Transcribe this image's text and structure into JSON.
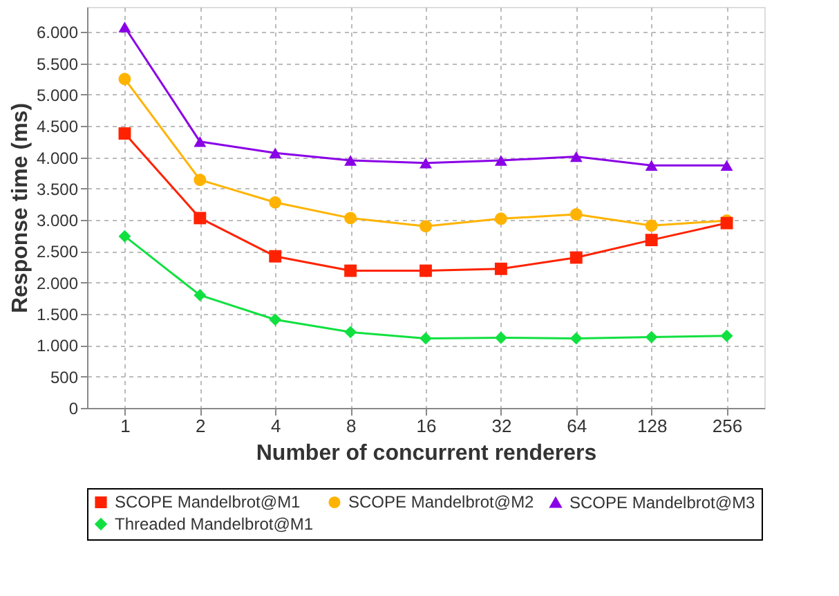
{
  "chart_data": {
    "type": "line",
    "xlabel": "Number of concurrent renderers",
    "ylabel": "Response time (ms)",
    "categories": [
      "1",
      "2",
      "4",
      "8",
      "16",
      "32",
      "64",
      "128",
      "256"
    ],
    "series": [
      {
        "name": "SCOPE Mandelbrot@M1",
        "color": "#ff2200",
        "marker": "square",
        "values": [
          4380,
          3030,
          2420,
          2190,
          2190,
          2220,
          2400,
          2680,
          2950
        ]
      },
      {
        "name": "SCOPE Mandelbrot@M2",
        "color": "#ffb300",
        "marker": "circle",
        "values": [
          5250,
          3640,
          3280,
          3030,
          2900,
          3020,
          3090,
          2910,
          2990
        ]
      },
      {
        "name": "SCOPE Mandelbrot@M3",
        "color": "#8a00e6",
        "marker": "triangle",
        "values": [
          6080,
          4250,
          4070,
          3950,
          3910,
          3950,
          4010,
          3870,
          3870
        ]
      },
      {
        "name": "Threaded Mandelbrot@M1",
        "color": "#11e040",
        "marker": "diamond",
        "values": [
          2740,
          1800,
          1410,
          1210,
          1110,
          1120,
          1110,
          1130,
          1150
        ]
      }
    ],
    "ylim": [
      0,
      6400
    ],
    "yticks": [
      0,
      {
        "value": 500,
        "label": "500"
      },
      {
        "value": 1000,
        "label": "1.000"
      },
      {
        "value": 1500,
        "label": "1.500"
      },
      {
        "value": 2000,
        "label": "2.000"
      },
      {
        "value": 2500,
        "label": "2.500"
      },
      {
        "value": 3000,
        "label": "3.000"
      },
      {
        "value": 3500,
        "label": "3.500"
      },
      {
        "value": 4000,
        "label": "4.000"
      },
      {
        "value": 4500,
        "label": "4.500"
      },
      {
        "value": 5000,
        "label": "5.000"
      },
      {
        "value": 5500,
        "label": "5.500"
      },
      {
        "value": 6000,
        "label": "6.000"
      }
    ],
    "grid": true,
    "legend": "bottom",
    "line_style": "solid"
  }
}
